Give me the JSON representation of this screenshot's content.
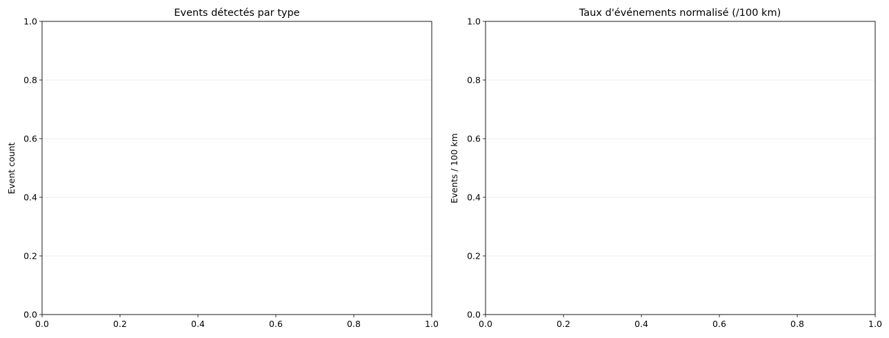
{
  "chart_data": [
    {
      "type": "bar",
      "title": "Events détectés par type",
      "xlabel": "",
      "ylabel": "Event count",
      "xlim": [
        0.0,
        1.0
      ],
      "ylim": [
        0.0,
        1.0
      ],
      "xticks": [
        "0.0",
        "0.2",
        "0.4",
        "0.6",
        "0.8",
        "1.0"
      ],
      "yticks": [
        "0.0",
        "0.2",
        "0.4",
        "0.6",
        "0.8",
        "1.0"
      ],
      "grid": "y",
      "categories": [],
      "values": []
    },
    {
      "type": "bar",
      "title": "Taux d'événements normalisé (/100 km)",
      "xlabel": "",
      "ylabel": "Events / 100 km",
      "xlim": [
        0.0,
        1.0
      ],
      "ylim": [
        0.0,
        1.0
      ],
      "xticks": [
        "0.0",
        "0.2",
        "0.4",
        "0.6",
        "0.8",
        "1.0"
      ],
      "yticks": [
        "0.0",
        "0.2",
        "0.4",
        "0.6",
        "0.8",
        "1.0"
      ],
      "grid": "y",
      "categories": [],
      "values": []
    }
  ],
  "colors": {
    "axis": "#000000",
    "grid": "#e6e6e6",
    "background": "#ffffff"
  }
}
